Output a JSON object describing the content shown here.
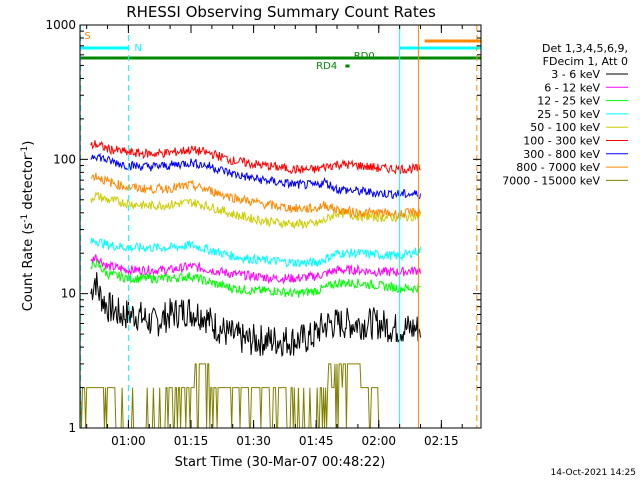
{
  "chart_data": {
    "type": "line",
    "title": "RHESSI Observing Summary Count Rates",
    "xlabel": "Start Time (30-Mar-07 00:48:22)",
    "ylabel": "Count Rate (s",
    "ylabel_sup": "-1",
    "ylabel_mid": " detector",
    "ylabel_sup2": "-1",
    "ylabel_end": ")",
    "yscale": "log",
    "ylim": [
      1,
      1000
    ],
    "xlim_minutes": [
      48.4,
      144.5
    ],
    "y_ticks": [
      "1",
      "10",
      "100",
      "1000"
    ],
    "x_ticks": [
      {
        "t": 60,
        "label": "01:00"
      },
      {
        "t": 75,
        "label": "01:15"
      },
      {
        "t": 90,
        "label": "01:30"
      },
      {
        "t": 105,
        "label": "01:45"
      },
      {
        "t": 120,
        "label": "02:00"
      },
      {
        "t": 135,
        "label": "02:15"
      }
    ],
    "legend_header": [
      "Det 1,3,4,5,6,9,",
      "FDecim 1, Att 0"
    ],
    "legend_placement": "right",
    "series": [
      {
        "name": "3 - 6 keV",
        "color": "#000000",
        "x": [
          51,
          52,
          53,
          55,
          58,
          62,
          66,
          70,
          74,
          78,
          80,
          84,
          88,
          92,
          96,
          100,
          104,
          106,
          108,
          110,
          112,
          116,
          120,
          124,
          127,
          130
        ],
        "y": [
          10,
          13,
          10,
          8,
          7,
          7,
          6,
          7,
          7.5,
          7,
          6,
          5,
          4.5,
          4.5,
          4.5,
          4.5,
          4.7,
          5.5,
          6,
          6,
          6,
          6,
          6,
          5.5,
          5.5,
          5.5
        ]
      },
      {
        "name": "6 - 12 keV",
        "color": "#ff00ff",
        "x": [
          51,
          52,
          55,
          60,
          65,
          70,
          75,
          80,
          85,
          90,
          95,
          100,
          105,
          107,
          110,
          115,
          120,
          125,
          130
        ],
        "y": [
          17,
          19,
          16,
          15,
          15,
          15,
          16,
          15,
          14,
          13.5,
          13,
          13,
          13.5,
          14,
          15,
          15,
          14.5,
          14.5,
          15
        ]
      },
      {
        "name": "12 - 25 keV",
        "color": "#00ff00",
        "x": [
          51,
          52,
          55,
          60,
          65,
          70,
          75,
          80,
          85,
          90,
          95,
          100,
          105,
          107,
          110,
          115,
          120,
          125,
          130
        ],
        "y": [
          15,
          17,
          14,
          13,
          13,
          13,
          13.5,
          12,
          11,
          10.5,
          10.5,
          10,
          10.5,
          11,
          12,
          12,
          11.5,
          11,
          11
        ]
      },
      {
        "name": "25 - 50 keV",
        "color": "#00ffff",
        "x": [
          51,
          52,
          55,
          60,
          65,
          70,
          75,
          80,
          85,
          90,
          95,
          100,
          105,
          107,
          110,
          115,
          120,
          125,
          130
        ],
        "y": [
          24,
          25,
          23,
          22,
          22,
          22,
          23,
          21,
          19,
          18,
          17.5,
          17,
          17,
          18,
          20,
          20,
          19.5,
          19,
          21
        ]
      },
      {
        "name": "50 - 100 keV",
        "color": "#cccc00",
        "x": [
          51,
          52,
          55,
          60,
          65,
          70,
          75,
          80,
          85,
          90,
          95,
          100,
          105,
          107,
          110,
          115,
          120,
          125,
          130
        ],
        "y": [
          50,
          54,
          50,
          47,
          45,
          46,
          48,
          44,
          39,
          36,
          34,
          33,
          33,
          35,
          40,
          38,
          37,
          37,
          38
        ]
      },
      {
        "name": "100 - 300 keV",
        "color": "#ff0000",
        "x": [
          51,
          52,
          55,
          60,
          65,
          70,
          75,
          80,
          85,
          90,
          95,
          100,
          105,
          107,
          110,
          115,
          120,
          125,
          130
        ],
        "y": [
          125,
          130,
          120,
          112,
          110,
          112,
          118,
          110,
          98,
          92,
          88,
          84,
          84,
          88,
          92,
          90,
          86,
          85,
          85
        ]
      },
      {
        "name": "300 - 800 keV",
        "color": "#0000ff",
        "x": [
          51,
          52,
          55,
          60,
          65,
          70,
          75,
          80,
          85,
          90,
          95,
          100,
          105,
          107,
          110,
          115,
          120,
          125,
          130
        ],
        "y": [
          104,
          108,
          98,
          90,
          88,
          90,
          95,
          88,
          78,
          72,
          68,
          65,
          64,
          68,
          60,
          58,
          56,
          55,
          55
        ]
      },
      {
        "name": "800 - 7000 keV",
        "color": "#ff8800",
        "x": [
          51,
          52,
          55,
          60,
          65,
          70,
          75,
          80,
          85,
          90,
          95,
          100,
          105,
          107,
          110,
          115,
          120,
          125,
          130
        ],
        "y": [
          72,
          76,
          68,
          62,
          60,
          61,
          64,
          58,
          52,
          48,
          45,
          43,
          43,
          46,
          42,
          40,
          40,
          39,
          41
        ]
      },
      {
        "name": "7000 - 15000 keV",
        "color": "#808000",
        "x": [
          48.5,
          56,
          57,
          67,
          69,
          76,
          80,
          98,
          104,
          106,
          108,
          112,
          116,
          118,
          120,
          124
        ],
        "y": [
          2,
          2,
          1,
          1,
          2,
          3,
          2,
          1,
          1,
          2,
          3,
          3,
          2,
          2,
          1,
          1
        ]
      }
    ],
    "state_bars": [
      {
        "label": "S",
        "color": "#ff8800",
        "row": "top",
        "x0": 48.5,
        "x1": 48.5
      },
      {
        "label": "N",
        "color": "#00ffff",
        "row": "mid",
        "x0": 48.5,
        "x1": 60
      },
      {
        "label": "RD0",
        "color": "#008800",
        "row": "low",
        "x0": 48.5,
        "x1": 144.5
      },
      {
        "label": "RD4",
        "color": "#008800",
        "row": "low2",
        "x0": 112,
        "x1": 113
      },
      {
        "label": "",
        "color": "#00ffff",
        "row": "mid",
        "x0": 125,
        "x1": 144.5
      },
      {
        "label": "",
        "color": "#ff8800",
        "row": "top",
        "x0": 131,
        "x1": 144.5
      }
    ],
    "markers": [
      {
        "t": 48.5,
        "color": "#00ffff",
        "dash": true
      },
      {
        "t": 60,
        "color": "#00ffff",
        "dash": true
      },
      {
        "t": 125,
        "color": "#00ffff",
        "dash": false
      },
      {
        "t": 129.5,
        "color": "#ff8800",
        "dash": false
      },
      {
        "t": 143.5,
        "color": "#ff8800",
        "dash": true
      }
    ],
    "grid": false
  },
  "footer": {
    "timestamp": "14-Oct-2021 14:25"
  }
}
